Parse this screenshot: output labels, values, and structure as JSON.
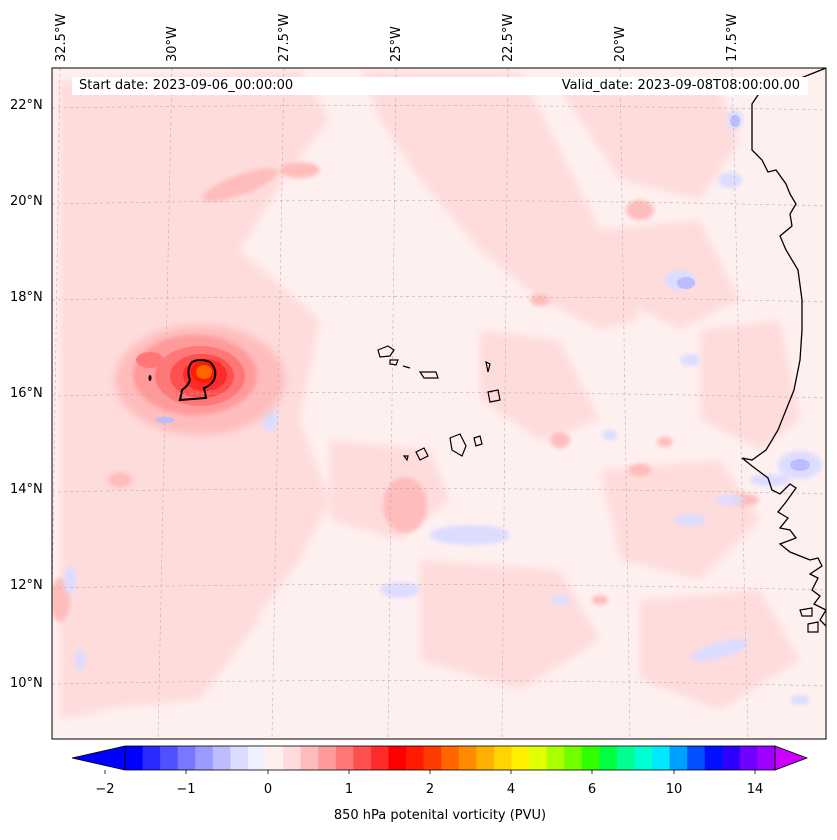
{
  "map": {
    "start_label": "Start date: 2023-09-06_00:00:00",
    "valid_label": "Valid_date: 2023-09-08T08:00:00.00",
    "variable": "850 hPa potenital vorticity (PVU)",
    "longitude_labels": [
      "32.5°W",
      "30°W",
      "27.5°W",
      "25°W",
      "22.5°W",
      "20°W",
      "17.5°W"
    ],
    "latitude_labels": [
      "22°N",
      "20°N",
      "18°N",
      "16°N",
      "14°N",
      "12°N",
      "10°N"
    ],
    "features": [
      "Cape Verde islands",
      "West African coastline",
      "high potential vorticity maximum near 16.5°N 29°W"
    ]
  },
  "colorbar": {
    "ticks": [
      "−2",
      "−1",
      "0",
      "1",
      "2",
      "4",
      "6",
      "10",
      "14"
    ],
    "colors": [
      "#0000ff",
      "#2a2aff",
      "#5050ff",
      "#7777ff",
      "#9a9aff",
      "#bcbcff",
      "#dcdcff",
      "#f0f0ff",
      "#fff0f0",
      "#ffdcdc",
      "#ffbcbc",
      "#ff9a9a",
      "#ff7777",
      "#ff5050",
      "#ff2a2a",
      "#ff0000",
      "#ff1a00",
      "#ff3c00",
      "#ff6600",
      "#ff8c00",
      "#ffb000",
      "#ffd400",
      "#fff000",
      "#e0ff00",
      "#aaff00",
      "#70ff00",
      "#30ff00",
      "#00ff40",
      "#00ff90",
      "#00ffd0",
      "#00e8ff",
      "#00a0ff",
      "#0050ff",
      "#0010ff",
      "#3000ff",
      "#7000ff",
      "#a000ff"
    ],
    "under_color": "#0000ff",
    "over_color": "#cc00ff"
  }
}
